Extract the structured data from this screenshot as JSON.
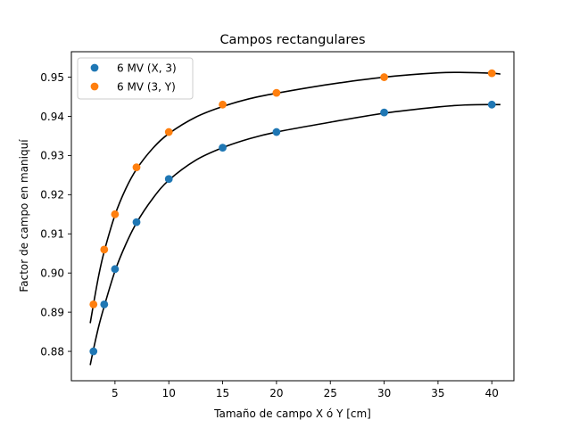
{
  "chart_data": {
    "type": "scatter",
    "title": "Campos rectangulares",
    "xlabel": "Tamaño de campo X ó Y [cm]",
    "ylabel": "Factor de campo en maniquí",
    "xlim": [
      0.95,
      42.05
    ],
    "ylim": [
      0.8725,
      0.9565
    ],
    "xticks": [
      5,
      10,
      15,
      20,
      25,
      30,
      35,
      40
    ],
    "yticks": [
      0.88,
      0.89,
      0.9,
      0.91,
      0.92,
      0.93,
      0.94,
      0.95
    ],
    "xtick_labels": [
      "5",
      "10",
      "15",
      "20",
      "25",
      "30",
      "35",
      "40"
    ],
    "ytick_labels": [
      "0.88",
      "0.89",
      "0.90",
      "0.91",
      "0.92",
      "0.93",
      "0.94",
      "0.95"
    ],
    "grid": false,
    "legend_position": "upper-left",
    "series": [
      {
        "name": "6 MV (X, 3)",
        "color": "#1f77b4",
        "marker": "circle",
        "x": [
          3,
          4,
          5,
          7,
          10,
          15,
          20,
          30,
          40
        ],
        "y": [
          0.88,
          0.892,
          0.901,
          0.913,
          0.924,
          0.932,
          0.936,
          0.941,
          0.943
        ]
      },
      {
        "name": "6 MV (3, Y)",
        "color": "#ff7f0e",
        "marker": "circle",
        "x": [
          3,
          4,
          5,
          7,
          10,
          15,
          20,
          30,
          40
        ],
        "y": [
          0.892,
          0.906,
          0.915,
          0.927,
          0.936,
          0.943,
          0.946,
          0.95,
          0.951
        ]
      }
    ],
    "fit_curves": [
      {
        "color": "#000000",
        "x": [
          2.7,
          3,
          3.5,
          4,
          5,
          6,
          7,
          8.5,
          10,
          12.5,
          15,
          17.5,
          20,
          25,
          30,
          35,
          37.5,
          40,
          40.8
        ],
        "y": [
          0.8765,
          0.8805,
          0.8865,
          0.8915,
          0.9005,
          0.9073,
          0.9128,
          0.919,
          0.9237,
          0.9288,
          0.932,
          0.9343,
          0.936,
          0.9385,
          0.9408,
          0.9424,
          0.9429,
          0.943,
          0.943
        ]
      },
      {
        "color": "#000000",
        "x": [
          2.7,
          3,
          3.5,
          4,
          5,
          6,
          7,
          8.5,
          10,
          12.5,
          15,
          17.5,
          20,
          25,
          30,
          35,
          37.5,
          40,
          40.8
        ],
        "y": [
          0.8872,
          0.892,
          0.8995,
          0.9055,
          0.9148,
          0.9215,
          0.9265,
          0.9318,
          0.9356,
          0.9398,
          0.9425,
          0.9445,
          0.9459,
          0.9482,
          0.95,
          0.9511,
          0.9512,
          0.951,
          0.9508
        ]
      }
    ]
  }
}
